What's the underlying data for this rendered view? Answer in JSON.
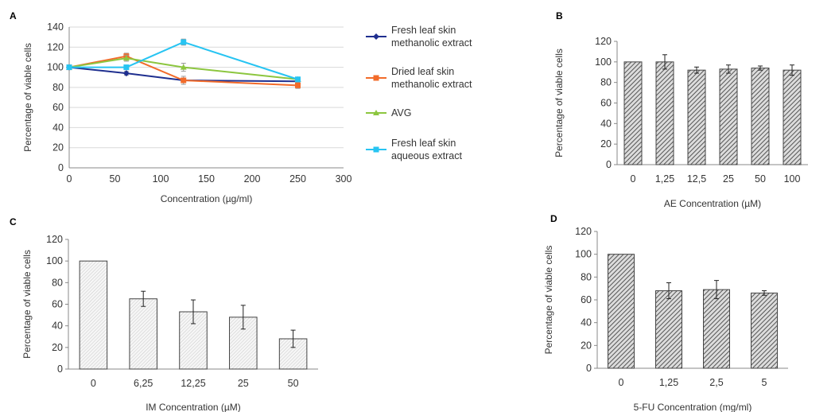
{
  "chart_data": [
    {
      "panel": "A",
      "type": "line",
      "xlabel": "Concentration (µg/ml)",
      "ylabel": "Percentage of viable cells",
      "xlim": [
        0,
        300
      ],
      "ylim": [
        0,
        140
      ],
      "xticks": [
        0,
        50,
        100,
        150,
        200,
        250,
        300
      ],
      "yticks": [
        0,
        20,
        40,
        60,
        80,
        100,
        120,
        140
      ],
      "grid": "horizontal",
      "legend_position": "right",
      "x": [
        0,
        62.5,
        125,
        250
      ],
      "series": [
        {
          "name_lines": [
            "Fresh leaf skin",
            "methanolic extract"
          ],
          "color": "#1f2f8f",
          "marker": "diamond",
          "values": [
            100,
            94,
            87,
            86
          ],
          "errors": [
            0,
            2,
            2,
            2
          ]
        },
        {
          "name_lines": [
            "Dried leaf skin",
            "methanolic extract"
          ],
          "color": "#f26b2a",
          "marker": "square",
          "values": [
            100,
            111,
            87,
            82
          ],
          "errors": [
            0,
            3,
            4,
            3
          ]
        },
        {
          "name_lines": [
            "AVG"
          ],
          "color": "#8cc63f",
          "marker": "triangle",
          "values": [
            100,
            109,
            100,
            88
          ],
          "errors": [
            0,
            3,
            4,
            2
          ]
        },
        {
          "name_lines": [
            "Fresh leaf skin",
            "aqueous extract"
          ],
          "color": "#27c4f2",
          "marker": "square",
          "values": [
            100,
            100,
            125,
            88
          ],
          "errors": [
            0,
            2,
            3,
            2
          ]
        }
      ]
    },
    {
      "panel": "B",
      "type": "bar",
      "fill": "dense-hatch",
      "categories": [
        "0",
        "1,25",
        "12,5",
        "25",
        "50",
        "100"
      ],
      "values": [
        100,
        100,
        92,
        93,
        94,
        92
      ],
      "errors": [
        0,
        7,
        3,
        4,
        2,
        5
      ],
      "xlabel": "AE Concentration (µM)",
      "ylabel": "Percentage of viable cells",
      "ylim": [
        0,
        120
      ],
      "yticks": [
        0,
        20,
        40,
        60,
        80,
        100,
        120
      ]
    },
    {
      "panel": "C",
      "type": "bar",
      "fill": "light-stipple",
      "categories": [
        "0",
        "6,25",
        "12,25",
        "25",
        "50"
      ],
      "values": [
        100,
        65,
        53,
        48,
        28
      ],
      "errors": [
        0,
        7,
        11,
        11,
        8
      ],
      "xlabel": "IM Concentration (µM)",
      "ylabel": "Percentage of viable cells",
      "ylim": [
        0,
        120
      ],
      "yticks": [
        0,
        20,
        40,
        60,
        80,
        100,
        120
      ]
    },
    {
      "panel": "D",
      "type": "bar",
      "fill": "dense-hatch",
      "categories": [
        "0",
        "1,25",
        "2,5",
        "5"
      ],
      "values": [
        100,
        68,
        69,
        66
      ],
      "errors": [
        0,
        7,
        8,
        2
      ],
      "xlabel": "5-FU Concentration (mg/ml)",
      "ylabel": "Percentage of viable cells",
      "ylim": [
        0,
        120
      ],
      "yticks": [
        0,
        20,
        40,
        60,
        80,
        100,
        120
      ]
    }
  ]
}
